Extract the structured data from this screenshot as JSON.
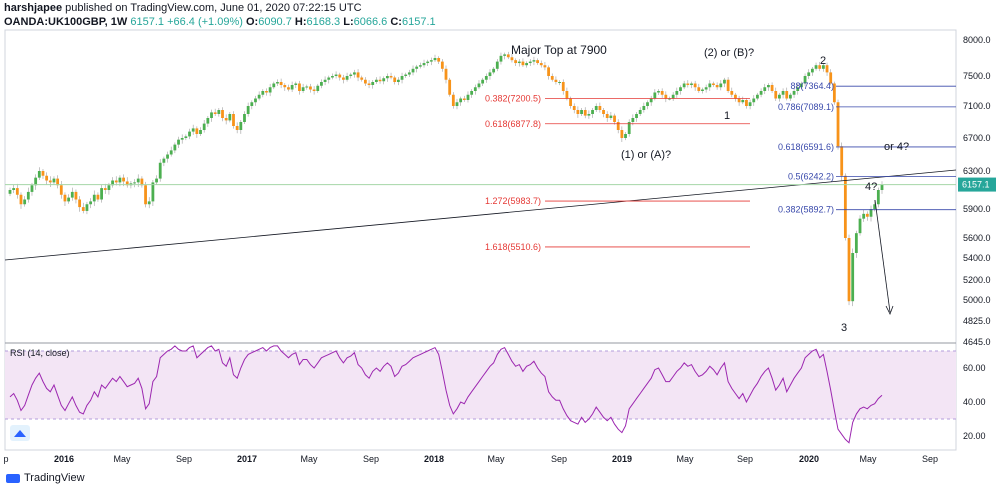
{
  "header": {
    "author": "harshjapee",
    "published": " published on TradingView.com, June 01, 2020 07:22:15 UTC",
    "symbol": "OANDA:UK100GBP, 1W",
    "last": "6157.1",
    "change": "+66.4 (+1.09%)",
    "o_label": "O:",
    "o": "6090.7",
    "h_label": "H:",
    "h": "6168.3",
    "l_label": "L:",
    "l": "6066.6",
    "c_label": "C:",
    "c": "6157.1"
  },
  "brand": {
    "name": "TradingView"
  },
  "colors": {
    "up": "#26a69a",
    "down": "#ef5350",
    "candle_up": "#4caf50",
    "candle_down": "#f7931a",
    "fib_red": "#e53935",
    "fib_blue": "#3949ab",
    "rsi": "#9c27b0",
    "rsi_band": "#f3e5f5"
  },
  "chart_data": {
    "type": "candlestick",
    "price_axis": {
      "ticks": [
        8000,
        7500,
        7100,
        6700,
        6300,
        5900,
        5600,
        5400,
        5200,
        5000,
        4825,
        4645
      ],
      "current": "6157.1"
    },
    "time_axis": {
      "ticks": [
        "p",
        "2016",
        "May",
        "Sep",
        "2017",
        "May",
        "Sep",
        "2018",
        "May",
        "Sep",
        "2019",
        "May",
        "Sep",
        "2020",
        "May",
        "Sep"
      ]
    },
    "annotations": {
      "labels": [
        "Major Top at 7900",
        "(2) or (B)?",
        "2",
        "1",
        "(1) or (A)?",
        "or 4?",
        "4?",
        "3"
      ],
      "fib_left": [
        {
          "label": "0.382(7200.5)",
          "price": 7200.5
        },
        {
          "label": "0.618(6877.8)",
          "price": 6877.8
        },
        {
          "label": "1.272(5983.7)",
          "price": 5983.7
        },
        {
          "label": "1.618(5510.6)",
          "price": 5510.6
        }
      ],
      "fib_right": [
        {
          "label": "88(7364.4)",
          "price": 7364.4
        },
        {
          "label": "0.786(7089.1)",
          "price": 7089.1
        },
        {
          "label": "0.618(6591.6)",
          "price": 6591.6
        },
        {
          "label": "0.5(6242.2)",
          "price": 6242.2
        },
        {
          "label": "0.382(5892.7)",
          "price": 5892.7
        }
      ]
    },
    "rsi": {
      "title": "RSI (14, close)",
      "ticks": [
        60,
        40,
        20
      ],
      "band": [
        30,
        70
      ]
    },
    "closes": [
      6100,
      6120,
      6050,
      5950,
      6000,
      6080,
      6150,
      6230,
      6300,
      6250,
      6200,
      6180,
      6220,
      6150,
      6050,
      5980,
      6020,
      6080,
      6000,
      5920,
      5880,
      5950,
      5980,
      6050,
      6000,
      6120,
      6100,
      6150,
      6200,
      6180,
      6230,
      6190,
      6150,
      6170,
      6180,
      6220,
      6150,
      5950,
      5980,
      6180,
      6220,
      6400,
      6450,
      6500,
      6550,
      6620,
      6680,
      6700,
      6720,
      6780,
      6820,
      6750,
      6800,
      6880,
      6950,
      7020,
      7000,
      7050,
      6950,
      6920,
      7000,
      6850,
      6800,
      6900,
      7000,
      7100,
      7150,
      7200,
      7250,
      7300,
      7280,
      7350,
      7400,
      7420,
      7380,
      7350,
      7320,
      7380,
      7400,
      7300,
      7350,
      7360,
      7320,
      7300,
      7370,
      7420,
      7450,
      7480,
      7500,
      7520,
      7480,
      7450,
      7500,
      7520,
      7550,
      7480,
      7450,
      7400,
      7380,
      7420,
      7450,
      7430,
      7470,
      7500,
      7480,
      7420,
      7450,
      7500,
      7520,
      7550,
      7600,
      7630,
      7650,
      7680,
      7700,
      7720,
      7750,
      7700,
      7600,
      7450,
      7250,
      7100,
      7150,
      7200,
      7180,
      7250,
      7300,
      7350,
      7400,
      7450,
      7500,
      7550,
      7600,
      7700,
      7780,
      7800,
      7760,
      7720,
      7680,
      7700,
      7650,
      7680,
      7700,
      7720,
      7680,
      7650,
      7620,
      7500,
      7450,
      7420,
      7420,
      7300,
      7200,
      7100,
      7050,
      7000,
      7050,
      6980,
      7000,
      7050,
      7100,
      7050,
      7000,
      6950,
      6980,
      6900,
      6800,
      6700,
      6750,
      6900,
      6950,
      7000,
      7050,
      7100,
      7150,
      7200,
      7280,
      7300,
      7250,
      7200,
      7200,
      7250,
      7300,
      7350,
      7400,
      7380,
      7400,
      7350,
      7300,
      7320,
      7350,
      7400,
      7380,
      7350,
      7400,
      7450,
      7300,
      7250,
      7200,
      7150,
      7180,
      7100,
      7150,
      7200,
      7250,
      7300,
      7350,
      7380,
      7300,
      7200,
      7250,
      7300,
      7200,
      7250,
      7300,
      7350,
      7400,
      7500,
      7550,
      7600,
      7650,
      7600,
      7650,
      7550,
      7400,
      7150,
      6600,
      6250,
      5600,
      4990,
      5450,
      5650,
      5800,
      5850,
      5820,
      5900,
      5950,
      6100,
      6157.1
    ],
    "rsi_values": [
      43,
      45,
      41,
      35,
      38,
      44,
      50,
      54,
      57,
      52,
      48,
      46,
      50,
      44,
      38,
      35,
      39,
      43,
      38,
      34,
      33,
      38,
      41,
      46,
      43,
      50,
      48,
      51,
      54,
      52,
      55,
      52,
      49,
      50,
      51,
      54,
      48,
      36,
      39,
      52,
      55,
      66,
      68,
      70,
      71,
      73,
      71,
      70,
      70,
      72,
      73,
      66,
      68,
      70,
      72,
      73,
      70,
      71,
      63,
      61,
      66,
      56,
      54,
      60,
      65,
      68,
      69,
      70,
      71,
      72,
      70,
      72,
      73,
      73,
      70,
      68,
      66,
      68,
      69,
      62,
      65,
      65,
      62,
      60,
      63,
      66,
      67,
      68,
      69,
      70,
      66,
      63,
      66,
      67,
      69,
      62,
      60,
      56,
      54,
      58,
      60,
      58,
      61,
      63,
      61,
      55,
      57,
      61,
      62,
      64,
      66,
      67,
      68,
      69,
      70,
      71,
      72,
      68,
      58,
      47,
      38,
      33,
      36,
      40,
      39,
      43,
      46,
      49,
      52,
      55,
      58,
      61,
      63,
      68,
      71,
      72,
      68,
      64,
      61,
      62,
      58,
      61,
      62,
      64,
      60,
      57,
      55,
      46,
      43,
      41,
      41,
      36,
      32,
      29,
      28,
      27,
      31,
      28,
      30,
      33,
      37,
      34,
      31,
      29,
      31,
      27,
      24,
      22,
      26,
      36,
      39,
      42,
      45,
      48,
      51,
      54,
      59,
      60,
      56,
      52,
      52,
      55,
      58,
      60,
      63,
      61,
      62,
      58,
      55,
      56,
      58,
      61,
      59,
      56,
      60,
      63,
      52,
      48,
      45,
      42,
      45,
      40,
      44,
      48,
      51,
      55,
      58,
      60,
      54,
      47,
      50,
      54,
      46,
      50,
      54,
      57,
      60,
      66,
      68,
      70,
      71,
      66,
      68,
      58,
      47,
      35,
      24,
      21,
      18,
      16,
      28,
      33,
      36,
      37,
      36,
      38,
      39,
      42,
      44
    ]
  }
}
